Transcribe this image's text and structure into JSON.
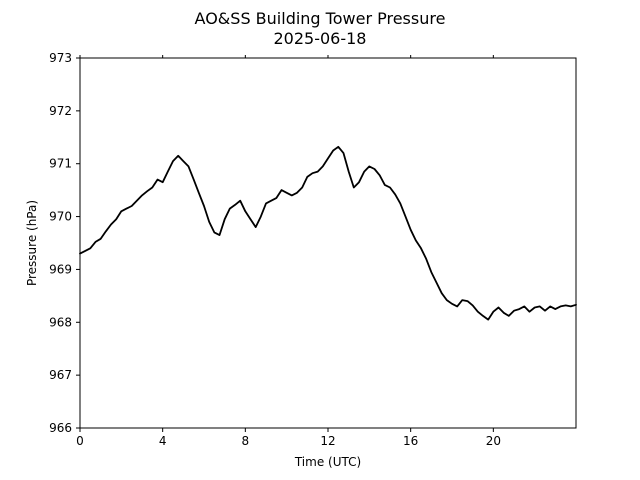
{
  "chart_data": {
    "type": "line",
    "title": "AO&SS Building Tower Pressure",
    "subtitle": "2025-06-18",
    "xlabel": "Time (UTC)",
    "ylabel": "Pressure (hPa)",
    "xlim": [
      0,
      24
    ],
    "ylim": [
      966,
      973
    ],
    "x_ticks": [
      0,
      4,
      8,
      12,
      16,
      20
    ],
    "y_ticks": [
      966,
      967,
      968,
      969,
      970,
      971,
      972,
      973
    ],
    "grid": false,
    "line_color": "#000000",
    "series": [
      {
        "x": [
          0,
          0.25,
          0.5,
          0.75,
          1.0,
          1.25,
          1.5,
          1.75,
          2.0,
          2.25,
          2.5,
          2.75,
          3.0,
          3.25,
          3.5,
          3.75,
          4.0,
          4.25,
          4.5,
          4.75,
          5.0,
          5.25,
          5.5,
          5.75,
          6.0,
          6.25,
          6.5,
          6.75,
          7.0,
          7.25,
          7.5,
          7.75,
          8.0,
          8.25,
          8.5,
          8.75,
          9.0,
          9.25,
          9.5,
          9.75,
          10.0,
          10.25,
          10.5,
          10.75,
          11.0,
          11.25,
          11.5,
          11.75,
          12.0,
          12.25,
          12.5,
          12.75,
          13.0,
          13.25,
          13.5,
          13.75,
          14.0,
          14.25,
          14.5,
          14.75,
          15.0,
          15.25,
          15.5,
          15.75,
          16.0,
          16.25,
          16.5,
          16.75,
          17.0,
          17.25,
          17.5,
          17.75,
          18.0,
          18.25,
          18.5,
          18.75,
          19.0,
          19.25,
          19.5,
          19.75,
          20.0,
          20.25,
          20.5,
          20.75,
          21.0,
          21.25,
          21.5,
          21.75,
          22.0,
          22.25,
          22.5,
          22.75,
          23.0,
          23.25,
          23.5,
          23.75,
          24.0
        ],
        "values": [
          969.3,
          969.35,
          969.4,
          969.52,
          969.58,
          969.72,
          969.85,
          969.95,
          970.1,
          970.15,
          970.2,
          970.3,
          970.4,
          970.48,
          970.55,
          970.7,
          970.65,
          970.85,
          971.05,
          971.15,
          971.05,
          970.95,
          970.7,
          970.45,
          970.2,
          969.9,
          969.7,
          969.65,
          969.95,
          970.15,
          970.22,
          970.3,
          970.1,
          969.95,
          969.8,
          970.0,
          970.25,
          970.3,
          970.35,
          970.5,
          970.45,
          970.4,
          970.45,
          970.55,
          970.75,
          970.82,
          970.85,
          970.95,
          971.1,
          971.25,
          971.32,
          971.2,
          970.85,
          970.55,
          970.65,
          970.85,
          970.95,
          970.9,
          970.78,
          970.6,
          970.55,
          970.42,
          970.25,
          970.0,
          969.75,
          969.55,
          969.4,
          969.2,
          968.95,
          968.75,
          968.55,
          968.42,
          968.35,
          968.3,
          968.42,
          968.4,
          968.32,
          968.2,
          968.12,
          968.05,
          968.2,
          968.28,
          968.18,
          968.12,
          968.22,
          968.25,
          968.3,
          968.2,
          968.28,
          968.3,
          968.22,
          968.3,
          968.25,
          968.3,
          968.32,
          968.3,
          968.33
        ]
      }
    ]
  }
}
